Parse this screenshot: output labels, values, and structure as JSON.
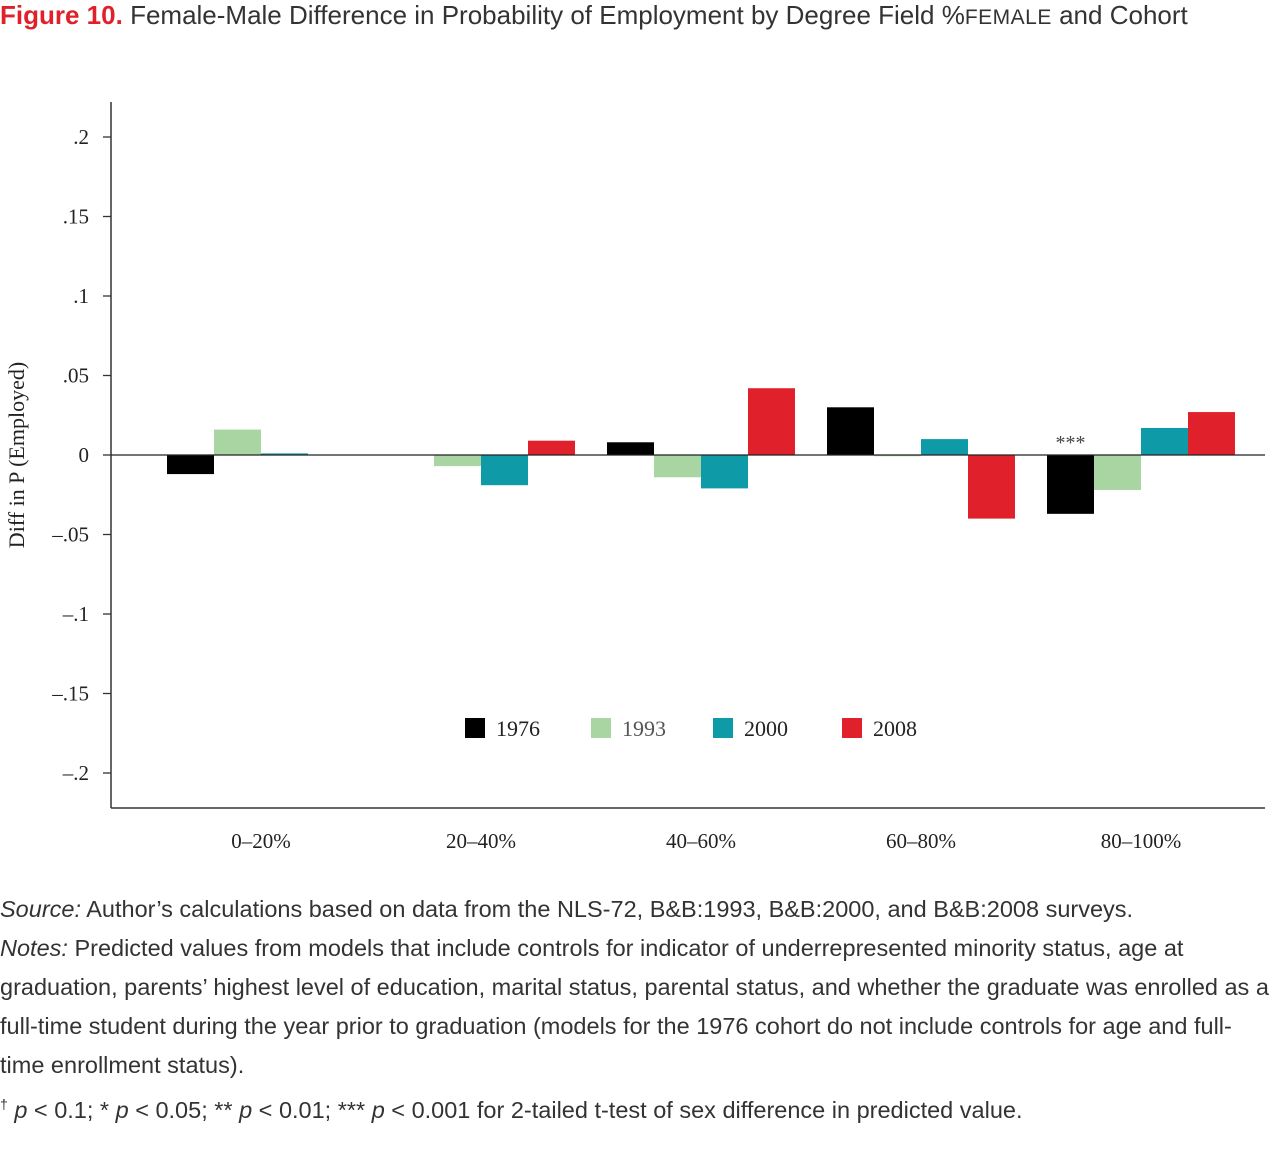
{
  "figure": {
    "label": "Figure 10.",
    "title_main": "Female-Male Difference in Probability of Employment by Degree Field %",
    "title_smallcaps": "FEMALE",
    "title_tail": " and Cohort"
  },
  "chart_data": {
    "type": "bar",
    "ylabel": "Diff in P (Employed)",
    "xlabel": "",
    "ylim": [
      -0.22,
      0.22
    ],
    "yticks": [
      0.2,
      0.15,
      0.1,
      0.05,
      0,
      -0.05,
      -0.1,
      -0.15,
      -0.2
    ],
    "ytick_labels": [
      ".2",
      ".15",
      ".1",
      ".05",
      "0",
      "-.05",
      "-.1",
      "-.15",
      "-.2"
    ],
    "categories": [
      "0-20%",
      "20-40%",
      "40-60%",
      "60-80%",
      "80-100%"
    ],
    "series": [
      {
        "name": "1976",
        "color": "#000000",
        "values": [
          -0.012,
          null,
          0.008,
          0.03,
          -0.037
        ]
      },
      {
        "name": "1993",
        "color": "#a8d5a2",
        "values": [
          0.016,
          -0.007,
          -0.014,
          0.0,
          -0.022
        ]
      },
      {
        "name": "2000",
        "color": "#0e9aa7",
        "values": [
          0.001,
          -0.019,
          -0.021,
          0.01,
          0.017
        ]
      },
      {
        "name": "2008",
        "color": "#e0202a",
        "values": [
          null,
          0.009,
          0.042,
          -0.04,
          0.027
        ]
      }
    ],
    "annotations": [
      {
        "text": "***",
        "category": "80-100%",
        "series": "1976"
      }
    ],
    "grid": false,
    "legend": "bottom-center (inside plot)"
  },
  "notes": {
    "source_label": "Source:",
    "source_text": " Author’s calculations based on data from the NLS-72, B&B:1993, B&B:2000, and B&B:2008 surveys.",
    "notes_label": "Notes:",
    "notes_text": " Predicted values from models that include controls for indicator of underrepresented minority status, age at graduation, parents’ highest level of education, marital status, parental status, and whether the graduate was enrolled as a full-time student during the year prior to graduation (models for the 1976 cohort do not include controls for age and full-time enrollment status).",
    "sig_dagger": "†",
    "sig_p1": " p",
    "sig_t1": " < 0.1; * ",
    "sig_p2": "p",
    "sig_t2": " < 0.05; ** ",
    "sig_p3": "p",
    "sig_t3": " < 0.01; *** ",
    "sig_p4": "p",
    "sig_t4": " < 0.001 for 2-tailed t-test of sex difference in predicted value."
  }
}
